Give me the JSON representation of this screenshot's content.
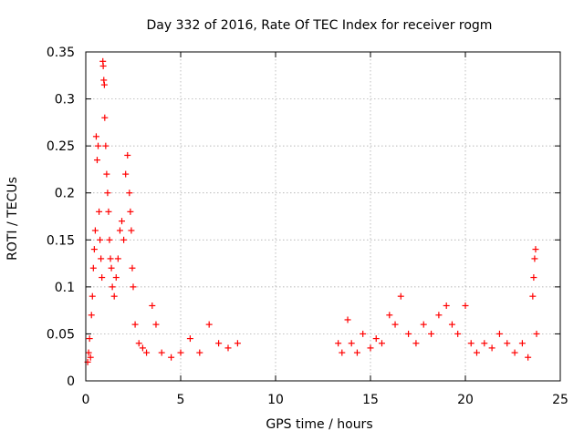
{
  "chart_data": {
    "type": "scatter",
    "title": "Day 332 of 2016, Rate Of TEC Index for receiver rogm",
    "xlabel": "GPS time / hours",
    "ylabel": "ROTI / TECUs",
    "xlim": [
      0,
      25
    ],
    "ylim": [
      0,
      0.35
    ],
    "xticks": [
      0,
      5,
      10,
      15,
      20,
      25
    ],
    "xtick_labels": [
      "0",
      "5",
      "10",
      "15",
      "20",
      "25"
    ],
    "yticks": [
      0,
      0.05,
      0.1,
      0.15,
      0.2,
      0.25,
      0.3,
      0.35
    ],
    "ytick_labels": [
      "0",
      "0.05",
      "0.1",
      "0.15",
      "0.2",
      "0.25",
      "0.3",
      "0.35"
    ],
    "grid": true,
    "marker": "+",
    "series": [
      {
        "name": "ROTI",
        "color": "#ff0000",
        "points": [
          [
            0.1,
            0.02
          ],
          [
            0.15,
            0.03
          ],
          [
            0.2,
            0.045
          ],
          [
            0.25,
            0.025
          ],
          [
            0.3,
            0.07
          ],
          [
            0.35,
            0.09
          ],
          [
            0.4,
            0.12
          ],
          [
            0.45,
            0.14
          ],
          [
            0.5,
            0.16
          ],
          [
            0.55,
            0.26
          ],
          [
            0.6,
            0.235
          ],
          [
            0.65,
            0.25
          ],
          [
            0.7,
            0.18
          ],
          [
            0.75,
            0.15
          ],
          [
            0.8,
            0.13
          ],
          [
            0.85,
            0.11
          ],
          [
            0.9,
            0.34
          ],
          [
            0.92,
            0.335
          ],
          [
            0.95,
            0.32
          ],
          [
            0.98,
            0.315
          ],
          [
            1.0,
            0.28
          ],
          [
            1.05,
            0.25
          ],
          [
            1.1,
            0.22
          ],
          [
            1.15,
            0.2
          ],
          [
            1.2,
            0.18
          ],
          [
            1.25,
            0.15
          ],
          [
            1.3,
            0.13
          ],
          [
            1.35,
            0.12
          ],
          [
            1.4,
            0.1
          ],
          [
            1.5,
            0.09
          ],
          [
            1.6,
            0.11
          ],
          [
            1.7,
            0.13
          ],
          [
            1.8,
            0.16
          ],
          [
            1.9,
            0.17
          ],
          [
            2.0,
            0.15
          ],
          [
            2.1,
            0.22
          ],
          [
            2.2,
            0.24
          ],
          [
            2.3,
            0.2
          ],
          [
            2.35,
            0.18
          ],
          [
            2.4,
            0.16
          ],
          [
            2.45,
            0.12
          ],
          [
            2.5,
            0.1
          ],
          [
            2.6,
            0.06
          ],
          [
            2.8,
            0.04
          ],
          [
            3.0,
            0.035
          ],
          [
            3.2,
            0.03
          ],
          [
            3.5,
            0.08
          ],
          [
            3.7,
            0.06
          ],
          [
            4.0,
            0.03
          ],
          [
            4.5,
            0.025
          ],
          [
            5.0,
            0.03
          ],
          [
            5.5,
            0.045
          ],
          [
            6.0,
            0.03
          ],
          [
            6.5,
            0.06
          ],
          [
            7.0,
            0.04
          ],
          [
            7.5,
            0.035
          ],
          [
            8.0,
            0.04
          ],
          [
            13.3,
            0.04
          ],
          [
            13.5,
            0.03
          ],
          [
            13.8,
            0.065
          ],
          [
            14.0,
            0.04
          ],
          [
            14.3,
            0.03
          ],
          [
            14.6,
            0.05
          ],
          [
            15.0,
            0.035
          ],
          [
            15.3,
            0.045
          ],
          [
            15.6,
            0.04
          ],
          [
            16.0,
            0.07
          ],
          [
            16.3,
            0.06
          ],
          [
            16.6,
            0.09
          ],
          [
            17.0,
            0.05
          ],
          [
            17.4,
            0.04
          ],
          [
            17.8,
            0.06
          ],
          [
            18.2,
            0.05
          ],
          [
            18.6,
            0.07
          ],
          [
            19.0,
            0.08
          ],
          [
            19.3,
            0.06
          ],
          [
            19.6,
            0.05
          ],
          [
            20.0,
            0.08
          ],
          [
            20.3,
            0.04
          ],
          [
            20.6,
            0.03
          ],
          [
            21.0,
            0.04
          ],
          [
            21.4,
            0.035
          ],
          [
            21.8,
            0.05
          ],
          [
            22.2,
            0.04
          ],
          [
            22.6,
            0.03
          ],
          [
            23.0,
            0.04
          ],
          [
            23.3,
            0.025
          ],
          [
            23.55,
            0.09
          ],
          [
            23.6,
            0.11
          ],
          [
            23.65,
            0.13
          ],
          [
            23.7,
            0.14
          ],
          [
            23.75,
            0.05
          ]
        ]
      }
    ]
  }
}
